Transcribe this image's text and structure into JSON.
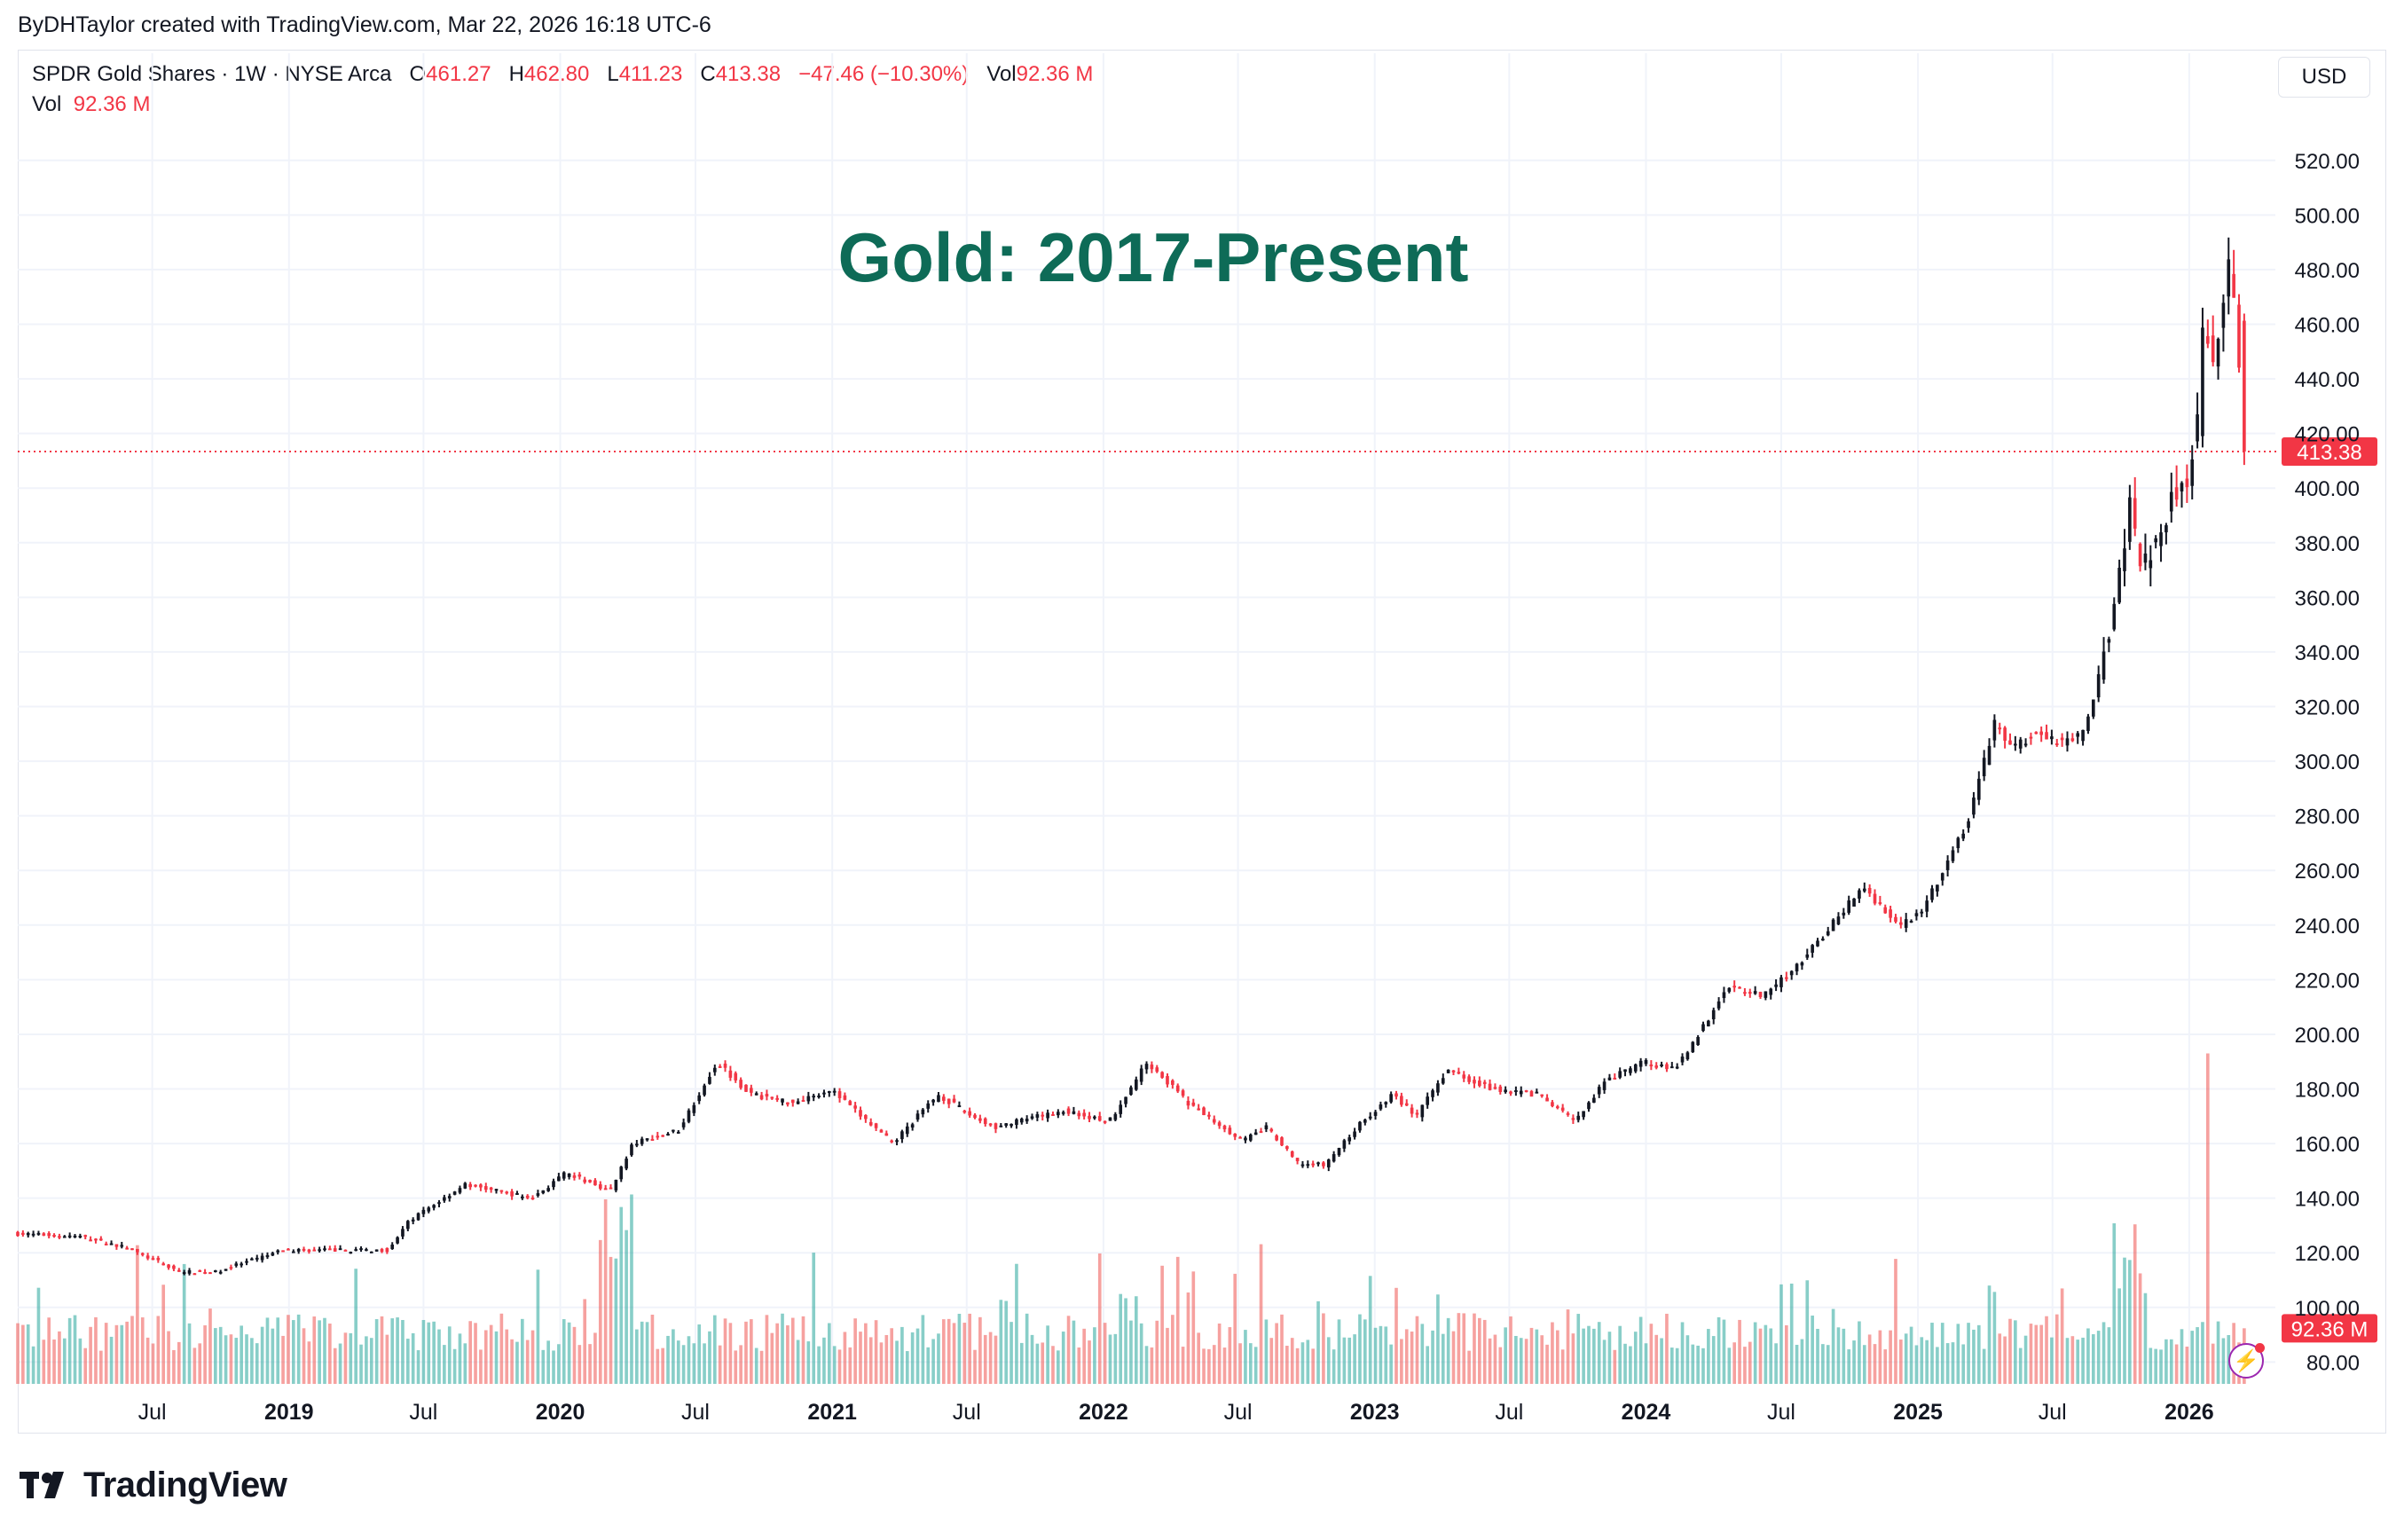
{
  "credit": "ByDHTaylor created with TradingView.com, Mar 22, 2026 16:18 UTC-6",
  "legend": {
    "symbol": "SPDR Gold Shares · 1W · NYSE Arca",
    "o_label": "O",
    "o_value": "461.27",
    "h_label": "H",
    "h_value": "462.80",
    "l_label": "L",
    "l_value": "411.23",
    "c_label": "C",
    "c_value": "413.38",
    "change": "−47.46 (−10.30%)",
    "vol_label": "Vol",
    "vol_value": "92.36 M",
    "vol_row_label": "Vol",
    "vol_row_value": "92.36 M"
  },
  "currency_button": "USD",
  "branding": "TradingView",
  "colors": {
    "up": "#131722",
    "down": "#f23645",
    "vol_up": "#26a69a",
    "vol_down": "#ef5350",
    "title": "#0e6b57",
    "grid": "#f0f3fa"
  },
  "chart_data": {
    "type": "candlestick",
    "title": "Gold: 2017-Present",
    "timeframe": "1W",
    "y_ticks": [
      "80.00",
      "100.00",
      "120.00",
      "140.00",
      "160.00",
      "180.00",
      "200.00",
      "220.00",
      "240.00",
      "260.00",
      "280.00",
      "300.00",
      "320.00",
      "340.00",
      "360.00",
      "380.00",
      "400.00",
      "420.00",
      "440.00",
      "460.00",
      "480.00",
      "500.00",
      "520.00"
    ],
    "ylim": [
      72,
      530
    ],
    "x_ticks": [
      {
        "label": "Jul",
        "bold": false,
        "date": "2018-07-01"
      },
      {
        "label": "2019",
        "bold": true,
        "date": "2019-01-01"
      },
      {
        "label": "Jul",
        "bold": false,
        "date": "2019-07-01"
      },
      {
        "label": "2020",
        "bold": true,
        "date": "2020-01-01"
      },
      {
        "label": "Jul",
        "bold": false,
        "date": "2020-07-01"
      },
      {
        "label": "2021",
        "bold": true,
        "date": "2021-01-01"
      },
      {
        "label": "Jul",
        "bold": false,
        "date": "2021-07-01"
      },
      {
        "label": "2022",
        "bold": true,
        "date": "2022-01-01"
      },
      {
        "label": "Jul",
        "bold": false,
        "date": "2022-07-01"
      },
      {
        "label": "2023",
        "bold": true,
        "date": "2023-01-01"
      },
      {
        "label": "Jul",
        "bold": false,
        "date": "2023-07-01"
      },
      {
        "label": "2024",
        "bold": true,
        "date": "2024-01-01"
      },
      {
        "label": "Jul",
        "bold": false,
        "date": "2024-07-01"
      },
      {
        "label": "2025",
        "bold": true,
        "date": "2025-01-01"
      },
      {
        "label": "Jul",
        "bold": false,
        "date": "2025-07-01"
      },
      {
        "label": "2026",
        "bold": true,
        "date": "2026-01-01"
      }
    ],
    "xlim": [
      "2018-01-01",
      "2026-04-15"
    ],
    "price_path": [
      [
        "2018-01-01",
        127
      ],
      [
        "2018-04-01",
        126
      ],
      [
        "2018-06-01",
        122
      ],
      [
        "2018-08-15",
        113
      ],
      [
        "2018-10-01",
        113
      ],
      [
        "2019-01-01",
        121
      ],
      [
        "2019-04-01",
        121
      ],
      [
        "2019-05-20",
        121
      ],
      [
        "2019-06-20",
        132
      ],
      [
        "2019-09-01",
        145
      ],
      [
        "2019-12-01",
        140
      ],
      [
        "2020-01-15",
        149
      ],
      [
        "2020-03-15",
        143
      ],
      [
        "2020-04-15",
        160
      ],
      [
        "2020-06-15",
        165
      ],
      [
        "2020-08-06",
        190
      ],
      [
        "2020-09-20",
        178
      ],
      [
        "2020-11-15",
        175
      ],
      [
        "2021-01-05",
        180
      ],
      [
        "2021-03-30",
        160
      ],
      [
        "2021-05-30",
        178
      ],
      [
        "2021-07-15",
        170
      ],
      [
        "2021-08-15",
        166
      ],
      [
        "2021-11-15",
        172
      ],
      [
        "2022-01-15",
        168
      ],
      [
        "2022-03-08",
        190
      ],
      [
        "2022-05-01",
        175
      ],
      [
        "2022-07-15",
        161
      ],
      [
        "2022-08-15",
        166
      ],
      [
        "2022-09-25",
        153
      ],
      [
        "2022-11-01",
        152
      ],
      [
        "2022-12-15",
        166
      ],
      [
        "2023-02-01",
        178
      ],
      [
        "2023-03-05",
        170
      ],
      [
        "2023-04-15",
        187
      ],
      [
        "2023-06-15",
        180
      ],
      [
        "2023-08-15",
        178
      ],
      [
        "2023-10-05",
        168
      ],
      [
        "2023-11-15",
        183
      ],
      [
        "2024-01-05",
        190
      ],
      [
        "2024-02-15",
        187
      ],
      [
        "2024-03-30",
        205
      ],
      [
        "2024-04-25",
        218
      ],
      [
        "2024-06-15",
        214
      ],
      [
        "2024-08-15",
        230
      ],
      [
        "2024-10-25",
        254
      ],
      [
        "2024-12-15",
        240
      ],
      [
        "2025-01-15",
        246
      ],
      [
        "2025-03-15",
        277
      ],
      [
        "2025-04-22",
        315
      ],
      [
        "2025-05-15",
        304
      ],
      [
        "2025-06-15",
        310
      ],
      [
        "2025-07-15",
        307
      ],
      [
        "2025-08-20",
        310
      ],
      [
        "2025-09-15",
        340
      ],
      [
        "2025-10-01",
        360
      ],
      [
        "2025-10-20",
        395
      ],
      [
        "2025-11-05",
        370
      ],
      [
        "2025-12-01",
        385
      ],
      [
        "2025-12-20",
        400
      ],
      [
        "2026-01-05",
        405
      ],
      [
        "2026-01-20",
        425
      ],
      [
        "2026-01-29",
        472
      ],
      [
        "2026-02-05",
        440
      ],
      [
        "2026-02-20",
        460
      ],
      [
        "2026-03-05",
        484
      ],
      [
        "2026-03-13",
        458
      ],
      [
        "2026-03-20",
        413.38
      ]
    ],
    "last_close": 413.38,
    "last_close_label": "413.38",
    "volume_last": 92.36,
    "volume_last_label": "92.36 M",
    "volume_peak": 193,
    "volume_peak_date": "2026-01-29"
  }
}
